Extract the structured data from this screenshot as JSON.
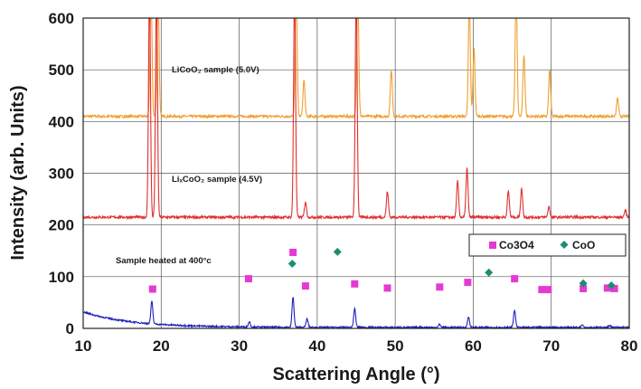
{
  "chart_data": {
    "type": "line",
    "xlabel": "Scattering Angle (°)",
    "ylabel": "Intensity (arb. Units)",
    "xlim": [
      10,
      80
    ],
    "ylim": [
      0,
      600
    ],
    "xticks": [
      "10",
      "20",
      "30",
      "40",
      "50",
      "60",
      "70",
      "80"
    ],
    "yticks": [
      "0",
      "100",
      "200",
      "300",
      "400",
      "500",
      "600"
    ],
    "grid": true,
    "annotations": [
      {
        "text": "LiCoO₂ sample (5.0V)",
        "x": 20.5,
        "y": 497
      },
      {
        "text": "LiₓCoO₂ sample (4.5V)",
        "x": 20.5,
        "y": 285
      },
      {
        "text": "Sample heated at 400°c",
        "x": 14.0,
        "y": 132
      }
    ],
    "legend": {
      "position": "right",
      "entries": [
        {
          "label": "Co3O4",
          "marker": "square",
          "color": "#e43ad2"
        },
        {
          "label": "CoO",
          "marker": "diamond",
          "color": "#1e8c72"
        }
      ]
    },
    "series": [
      {
        "color": "#f0a030",
        "baseline": 410,
        "x_start": 10,
        "peaks": [
          {
            "x": 18.7,
            "y": 650
          },
          {
            "x": 19.6,
            "y": 650
          },
          {
            "x": 37.3,
            "y": 650
          },
          {
            "x": 38.3,
            "y": 480
          },
          {
            "x": 45.2,
            "y": 650
          },
          {
            "x": 49.5,
            "y": 500
          },
          {
            "x": 59.5,
            "y": 630
          },
          {
            "x": 60.1,
            "y": 540
          },
          {
            "x": 65.5,
            "y": 650
          },
          {
            "x": 66.5,
            "y": 530
          },
          {
            "x": 69.8,
            "y": 500
          },
          {
            "x": 78.5,
            "y": 445
          }
        ]
      },
      {
        "color": "#e03030",
        "baseline": 215,
        "x_start": 10,
        "peaks": [
          {
            "x": 18.5,
            "y": 650
          },
          {
            "x": 19.4,
            "y": 650
          },
          {
            "x": 37.1,
            "y": 650
          },
          {
            "x": 38.5,
            "y": 245
          },
          {
            "x": 45.0,
            "y": 650
          },
          {
            "x": 49.0,
            "y": 265
          },
          {
            "x": 58.0,
            "y": 285
          },
          {
            "x": 59.2,
            "y": 310
          },
          {
            "x": 64.5,
            "y": 265
          },
          {
            "x": 66.2,
            "y": 270
          },
          {
            "x": 69.7,
            "y": 235
          },
          {
            "x": 79.5,
            "y": 228
          }
        ]
      },
      {
        "color": "#2020c0",
        "baseline": 2,
        "decay": {
          "start": 30,
          "length": 6
        },
        "x_start": 10,
        "peaks": [
          {
            "x": 18.8,
            "y": 45
          },
          {
            "x": 31.3,
            "y": 12
          },
          {
            "x": 36.9,
            "y": 60
          },
          {
            "x": 38.7,
            "y": 18
          },
          {
            "x": 44.8,
            "y": 38
          },
          {
            "x": 55.7,
            "y": 8
          },
          {
            "x": 59.4,
            "y": 22
          },
          {
            "x": 65.3,
            "y": 35
          },
          {
            "x": 74.0,
            "y": 8
          },
          {
            "x": 77.5,
            "y": 6
          }
        ]
      }
    ],
    "markers": {
      "co3o4": [
        [
          18.9,
          76
        ],
        [
          31.2,
          96
        ],
        [
          36.9,
          147
        ],
        [
          38.5,
          82
        ],
        [
          44.8,
          86
        ],
        [
          49.0,
          78
        ],
        [
          55.7,
          80
        ],
        [
          59.3,
          89
        ],
        [
          65.3,
          96
        ],
        [
          68.8,
          75
        ],
        [
          69.6,
          75
        ],
        [
          74.1,
          77
        ],
        [
          77.2,
          78
        ],
        [
          78.1,
          77
        ]
      ],
      "coo": [
        [
          36.8,
          125
        ],
        [
          42.6,
          148
        ],
        [
          62.0,
          108
        ],
        [
          74.1,
          87
        ],
        [
          77.7,
          83
        ]
      ]
    }
  }
}
